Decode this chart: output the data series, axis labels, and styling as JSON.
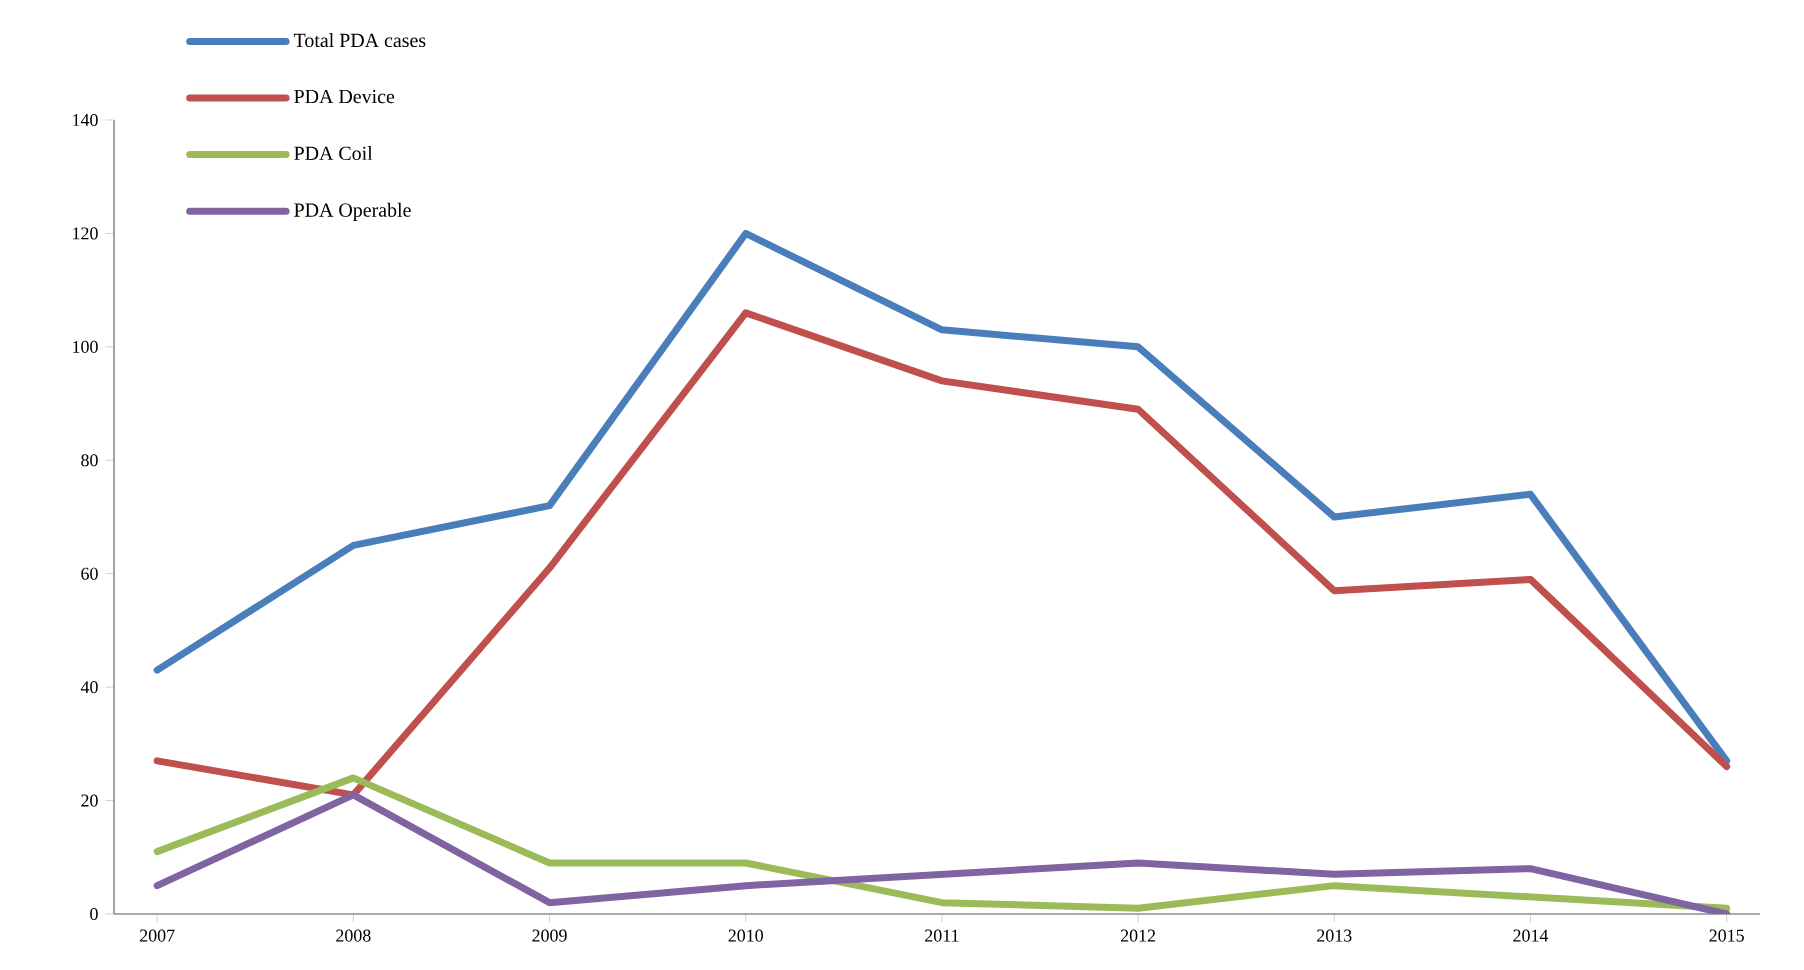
{
  "chart_data": {
    "type": "line",
    "categories": [
      "2007",
      "2008",
      "2009",
      "2010",
      "2011",
      "2012",
      "2013",
      "2014",
      "2015"
    ],
    "series": [
      {
        "name": "Total PDA cases",
        "color": "#4a7ebb",
        "values": [
          43,
          65,
          72,
          120,
          103,
          100,
          70,
          74,
          27
        ]
      },
      {
        "name": "PDA Device",
        "color": "#c0504d",
        "values": [
          27,
          21,
          61,
          106,
          94,
          89,
          57,
          59,
          26
        ]
      },
      {
        "name": "PDA Coil",
        "color": "#9bbb59",
        "values": [
          11,
          24,
          9,
          9,
          2,
          1,
          5,
          3,
          1
        ]
      },
      {
        "name": "PDA Operable",
        "color": "#8064a2",
        "values": [
          5,
          21,
          2,
          5,
          7,
          9,
          7,
          8,
          0
        ]
      }
    ],
    "ylim": [
      0,
      140
    ],
    "yticks": [
      0,
      20,
      40,
      60,
      80,
      100,
      120,
      140
    ],
    "grid": false,
    "legend": "top left",
    "marker": "none",
    "line_style": "solid"
  }
}
